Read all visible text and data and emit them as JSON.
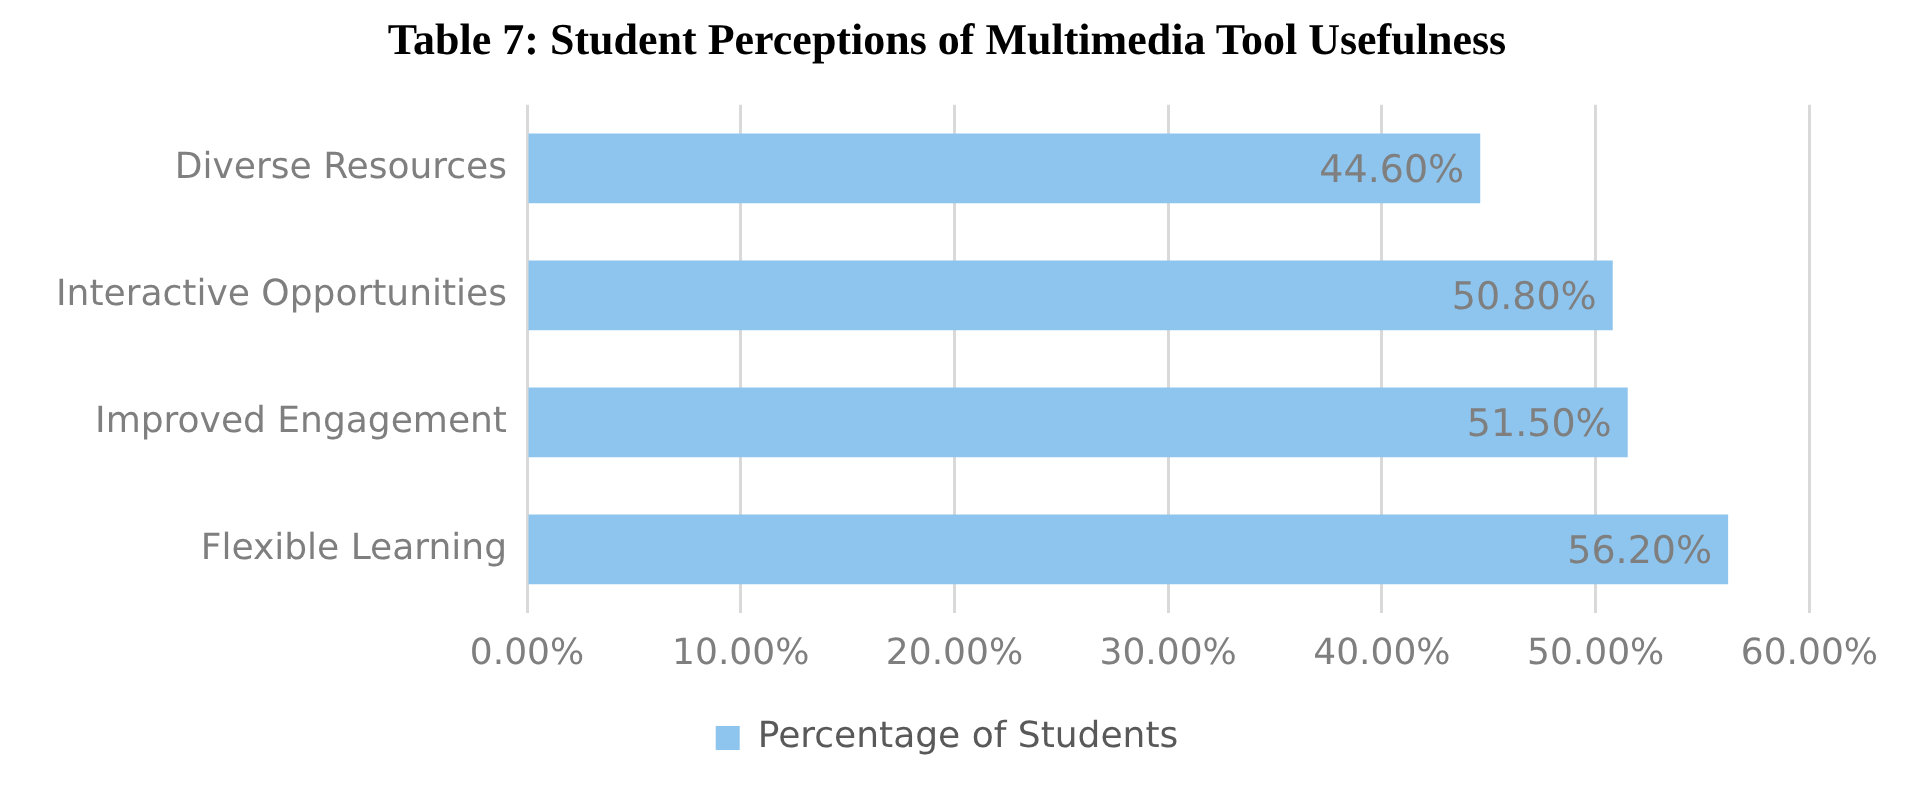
{
  "chart_data": {
    "type": "bar",
    "orientation": "horizontal",
    "title": "Table 7: Student Perceptions of Multimedia Tool Usefulness",
    "categories": [
      "Diverse Resources",
      "Interactive Opportunities",
      "Improved Engagement",
      "Flexible Learning"
    ],
    "series": [
      {
        "name": "Percentage of Students",
        "color": "#8ec5ee",
        "values": [
          44.6,
          50.8,
          51.5,
          56.2
        ],
        "value_labels": [
          "44.60%",
          "50.80%",
          "51.50%",
          "56.20%"
        ]
      }
    ],
    "xlim": [
      0,
      60
    ],
    "xticks": [
      {
        "value": 0,
        "label": "0.00%"
      },
      {
        "value": 10,
        "label": "10.00%"
      },
      {
        "value": 20,
        "label": "20.00%"
      },
      {
        "value": 30,
        "label": "30.00%"
      },
      {
        "value": 40,
        "label": "40.00%"
      },
      {
        "value": 50,
        "label": "50.00%"
      },
      {
        "value": 60,
        "label": "60.00%"
      }
    ],
    "grid": "x",
    "legend": "bottom"
  }
}
